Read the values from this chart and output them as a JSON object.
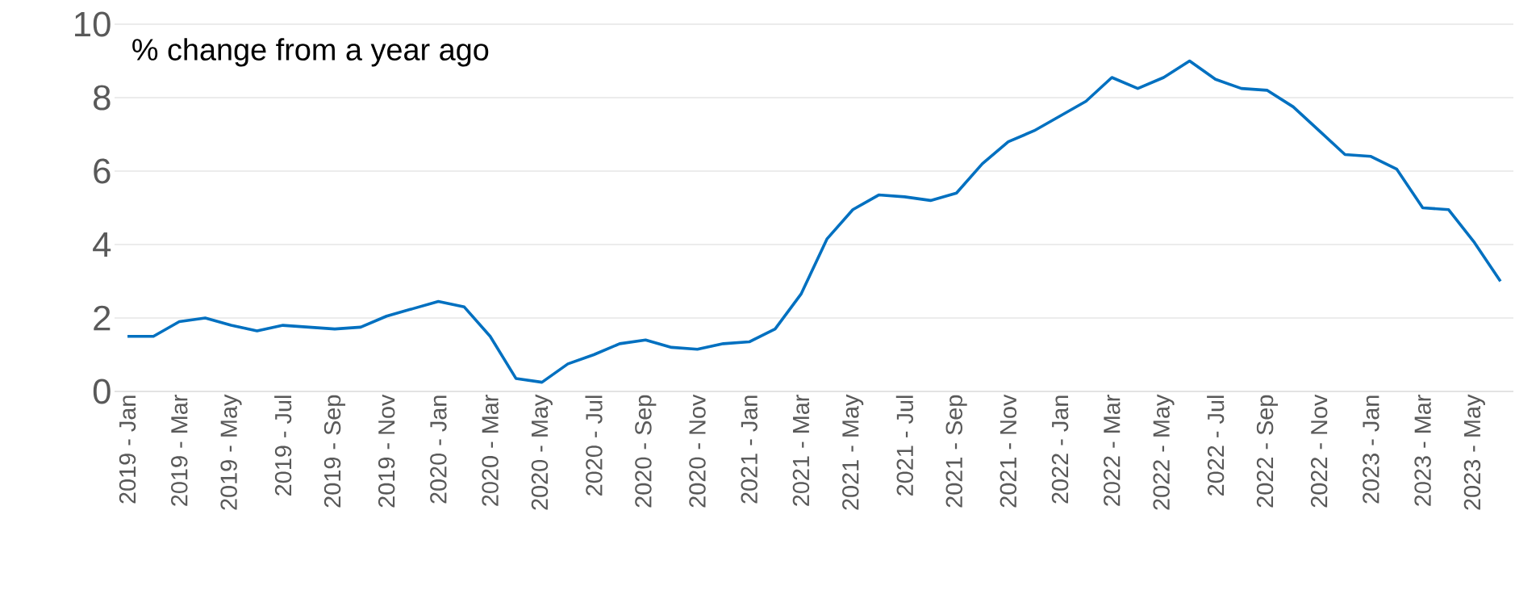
{
  "chart_data": {
    "type": "line",
    "annotations": [
      "% change from a year ago"
    ],
    "categories": [
      "2019 - Jan",
      null,
      "2019 - Mar",
      null,
      "2019 - May",
      null,
      "2019 - Jul",
      null,
      "2019 - Sep",
      null,
      "2019 - Nov",
      null,
      "2020 - Jan",
      null,
      "2020 - Mar",
      null,
      "2020 - May",
      null,
      "2020 - Jul",
      null,
      "2020 - Sep",
      null,
      "2020 - Nov",
      null,
      "2021 - Jan",
      null,
      "2021 - Mar",
      null,
      "2021 - May",
      null,
      "2021 - Jul",
      null,
      "2021 - Sep",
      null,
      "2021 - Nov",
      null,
      "2022 - Jan",
      null,
      "2022 - Mar",
      null,
      "2022 - May",
      null,
      "2022 - Jul",
      null,
      "2022 - Sep",
      null,
      "2022 - Nov",
      null,
      "2023 - Jan",
      null,
      "2023 - Mar",
      null,
      "2023 - May",
      null
    ],
    "series": [
      {
        "color": "#0070c0",
        "values": [
          1.5,
          1.5,
          1.9,
          2.0,
          1.8,
          1.65,
          1.8,
          1.75,
          1.7,
          1.75,
          2.05,
          2.25,
          2.45,
          2.3,
          1.5,
          0.35,
          0.25,
          0.75,
          1.0,
          1.3,
          1.4,
          1.2,
          1.15,
          1.3,
          1.35,
          1.7,
          2.65,
          4.15,
          4.95,
          5.35,
          5.3,
          5.2,
          5.4,
          6.2,
          6.8,
          7.1,
          7.5,
          7.9,
          8.55,
          8.25,
          8.55,
          9.0,
          8.5,
          8.25,
          8.2,
          7.75,
          7.1,
          6.45,
          6.4,
          6.05,
          5.0,
          4.95,
          4.05,
          3.0
        ]
      }
    ],
    "ylim": [
      0,
      10
    ],
    "yticks": [
      0,
      2,
      4,
      6,
      8,
      10
    ],
    "grid": "y"
  }
}
